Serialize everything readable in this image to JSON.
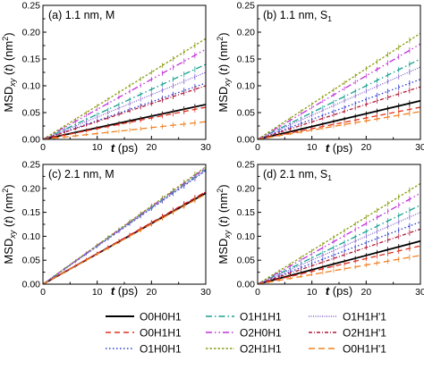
{
  "y_axis_label": "MSD",
  "y_axis_label_sub": "xy",
  "y_axis_label_rest": "(t) (nm",
  "y_axis_label_sup": "2",
  "y_axis_label_end": ")",
  "x_axis_label_var": "t",
  "x_axis_label_unit": "(ps)",
  "legend": [
    {
      "label": "O0H0H1",
      "color": "#000000",
      "dash": "solid"
    },
    {
      "label": "O0H1H1",
      "color": "#e0301e",
      "dash": "6,4"
    },
    {
      "label": "O1H0H1",
      "color": "#2a3ad0",
      "dash": "1.5,2.5"
    },
    {
      "label": "O1H1H1",
      "color": "#18a090",
      "dash": "7,3,1.5,3"
    },
    {
      "label": "O2H0H1",
      "color": "#c030d8",
      "dash": "7,3,1.5,3,1.5,3"
    },
    {
      "label": "O2H1H1",
      "color": "#8a9a10",
      "dash": "2.5,2"
    },
    {
      "label": "O1H1H'1",
      "color": "#8060d0",
      "dash": "1,1.5"
    },
    {
      "label": "O2H1H'1",
      "color": "#b01838",
      "dash": "4,2,1,2"
    },
    {
      "label": "O0H1H'1",
      "color": "#f08020",
      "dash": "7,4"
    }
  ],
  "chart_data": [
    {
      "type": "line",
      "panel_label": "(a) 1.1 nm, M",
      "xlim": [
        0,
        30
      ],
      "ylim": [
        0,
        0.25
      ],
      "xticks": [
        "0",
        "10",
        "20",
        "30"
      ],
      "yticks": [
        "0.00",
        "0.05",
        "0.10",
        "0.15",
        "0.20",
        "0.25"
      ],
      "x": [
        0,
        30
      ],
      "series": [
        {
          "name": "O0H0H1",
          "values": [
            0,
            0.065
          ]
        },
        {
          "name": "O0H1H1",
          "values": [
            0,
            0.06
          ]
        },
        {
          "name": "O1H0H1",
          "values": [
            0,
            0.105
          ]
        },
        {
          "name": "O1H1H1",
          "values": [
            0,
            0.14
          ]
        },
        {
          "name": "O2H0H1",
          "values": [
            0,
            0.168
          ]
        },
        {
          "name": "O2H1H1",
          "values": [
            0,
            0.188
          ]
        },
        {
          "name": "O1H1H'1",
          "values": [
            0,
            0.125
          ]
        },
        {
          "name": "O2H1H'1",
          "values": [
            0,
            0.1
          ]
        },
        {
          "name": "O0H1H'1",
          "values": [
            0,
            0.033
          ]
        }
      ]
    },
    {
      "type": "line",
      "panel_label": "(b) 1.1 nm, S",
      "panel_label_sub": "1",
      "xlim": [
        0,
        30
      ],
      "ylim": [
        0,
        0.25
      ],
      "xticks": [
        "0",
        "10",
        "20",
        "30"
      ],
      "yticks": [
        "0.00",
        "0.05",
        "0.10",
        "0.15",
        "0.20",
        "0.25"
      ],
      "x": [
        0,
        30
      ],
      "series": [
        {
          "name": "O0H0H1",
          "values": [
            0,
            0.072
          ]
        },
        {
          "name": "O0H1H1",
          "values": [
            0,
            0.06
          ]
        },
        {
          "name": "O1H0H1",
          "values": [
            0,
            0.112
          ]
        },
        {
          "name": "O1H1H1",
          "values": [
            0,
            0.15
          ]
        },
        {
          "name": "O2H0H1",
          "values": [
            0,
            0.178
          ]
        },
        {
          "name": "O2H1H1",
          "values": [
            0,
            0.198
          ]
        },
        {
          "name": "O1H1H'1",
          "values": [
            0,
            0.135
          ]
        },
        {
          "name": "O2H1H'1",
          "values": [
            0,
            0.098
          ]
        },
        {
          "name": "O0H1H'1",
          "values": [
            0,
            0.052
          ]
        }
      ]
    },
    {
      "type": "line",
      "panel_label": "(c) 2.1 nm, M",
      "xlim": [
        0,
        30
      ],
      "ylim": [
        0,
        0.25
      ],
      "xticks": [
        "0",
        "10",
        "20",
        "30"
      ],
      "yticks": [
        "0.00",
        "0.05",
        "0.10",
        "0.15",
        "0.20",
        "0.25"
      ],
      "x": [
        0,
        30
      ],
      "series": [
        {
          "name": "O0H0H1",
          "values": [
            0,
            0.19
          ]
        },
        {
          "name": "O0H1H1",
          "values": [
            0,
            0.193
          ]
        },
        {
          "name": "O1H0H1",
          "values": [
            0,
            0.237
          ]
        },
        {
          "name": "O1H1H1",
          "values": [
            0,
            0.24
          ]
        },
        {
          "name": "O2H0H1",
          "values": [
            0,
            0.243
          ]
        },
        {
          "name": "O2H1H1",
          "values": [
            0,
            0.245
          ]
        },
        {
          "name": "O1H1H'1",
          "values": [
            0,
            0.238
          ]
        },
        {
          "name": "O2H1H'1",
          "values": [
            0,
            0.192
          ]
        },
        {
          "name": "O0H1H'1",
          "values": [
            0,
            0.188
          ]
        }
      ]
    },
    {
      "type": "line",
      "panel_label": "(d) 2.1 nm, S",
      "panel_label_sub": "1",
      "xlim": [
        0,
        30
      ],
      "ylim": [
        0,
        0.25
      ],
      "xticks": [
        "0",
        "10",
        "20",
        "30"
      ],
      "yticks": [
        "0.00",
        "0.05",
        "0.10",
        "0.15",
        "0.20",
        "0.25"
      ],
      "x": [
        0,
        30
      ],
      "series": [
        {
          "name": "O0H0H1",
          "values": [
            0,
            0.09
          ]
        },
        {
          "name": "O0H1H1",
          "values": [
            0,
            0.08
          ]
        },
        {
          "name": "O1H0H1",
          "values": [
            0,
            0.13
          ]
        },
        {
          "name": "O1H1H1",
          "values": [
            0,
            0.165
          ]
        },
        {
          "name": "O2H0H1",
          "values": [
            0,
            0.19
          ]
        },
        {
          "name": "O2H1H1",
          "values": [
            0,
            0.21
          ]
        },
        {
          "name": "O1H1H'1",
          "values": [
            0,
            0.15
          ]
        },
        {
          "name": "O2H1H'1",
          "values": [
            0,
            0.115
          ]
        },
        {
          "name": "O0H1H'1",
          "values": [
            0,
            0.06
          ]
        }
      ]
    }
  ]
}
